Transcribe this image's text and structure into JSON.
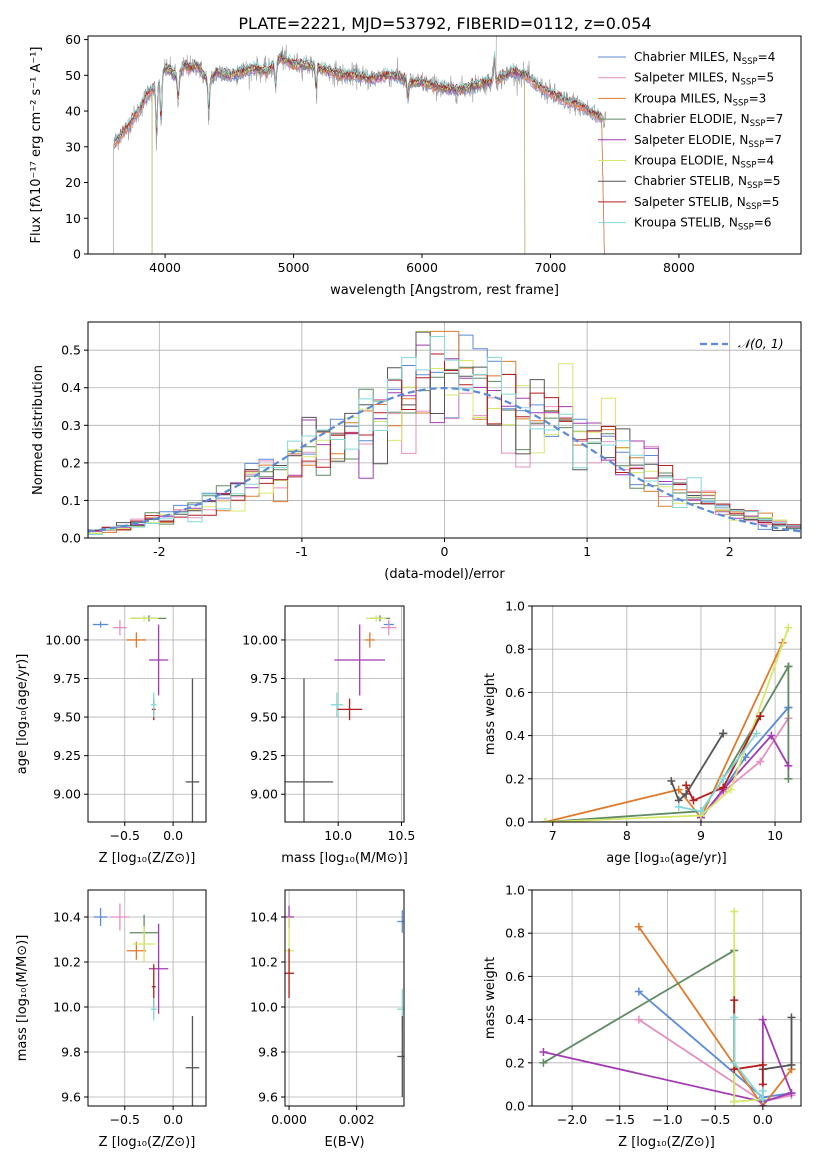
{
  "figure_title": "PLATE=2221, MJD=53792, FIBERID=0112, z=0.054",
  "colors": {
    "Chabrier MILES": "#5b8bd8",
    "Salpeter MILES": "#e58fc0",
    "Kroupa MILES": "#df7a2c",
    "Chabrier ELODIE": "#5f8a62",
    "Salpeter ELODIE": "#a23bb3",
    "Kroupa ELODIE": "#d6e86a",
    "Chabrier STELIB": "#555555",
    "Salpeter STELIB": "#b51d1d",
    "Kroupa STELIB": "#84d8d8",
    "normal_curve": "#5b8bd8",
    "grid": "#b0b0b0"
  },
  "chart_data": [
    {
      "id": "spectrum",
      "type": "line",
      "title": "PLATE=2221, MJD=53792, FIBERID=0112, z=0.054",
      "xlabel": "wavelength [Angstrom, rest frame]",
      "ylabel": "Flux [fλ10⁻¹⁷ erg cm⁻² s⁻¹ A⁻¹]",
      "xlim": [
        3400,
        8950
      ],
      "ylim": [
        0,
        61
      ],
      "xticks": [
        4000,
        5000,
        6000,
        7000,
        8000
      ],
      "yticks": [
        0,
        10,
        20,
        30,
        40,
        50,
        60
      ],
      "grid": false,
      "legend_position": "top-right",
      "legend": [
        {
          "series": "Chabrier MILES",
          "label": "Chabrier MILES, N",
          "sub": "SSP",
          "val": "=4"
        },
        {
          "series": "Salpeter MILES",
          "label": "Salpeter MILES, N",
          "sub": "SSP",
          "val": "=5"
        },
        {
          "series": "Kroupa MILES",
          "label": "Kroupa MILES, N",
          "sub": "SSP",
          "val": "=3"
        },
        {
          "series": "Chabrier ELODIE",
          "label": "Chabrier ELODIE, N",
          "sub": "SSP",
          "val": "=7"
        },
        {
          "series": "Salpeter ELODIE",
          "label": "Salpeter ELODIE, N",
          "sub": "SSP",
          "val": "=7"
        },
        {
          "series": "Kroupa ELODIE",
          "label": "Kroupa ELODIE, N",
          "sub": "SSP",
          "val": "=4"
        },
        {
          "series": "Chabrier STELIB",
          "label": "Chabrier STELIB, N",
          "sub": "SSP",
          "val": "=5"
        },
        {
          "series": "Salpeter STELIB",
          "label": "Salpeter STELIB, N",
          "sub": "SSP",
          "val": "=5"
        },
        {
          "series": "Kroupa STELIB",
          "label": "Kroupa STELIB, N",
          "sub": "SSP",
          "val": "=6"
        }
      ],
      "observed": {
        "x": [
          3600,
          3650,
          3700,
          3750,
          3800,
          3850,
          3900,
          3950,
          4000,
          4050,
          4100,
          4150,
          4200,
          4250,
          4300,
          4350,
          4400,
          4500,
          4600,
          4700,
          4800,
          4900,
          5000,
          5100,
          5200,
          5300,
          5400,
          5500,
          5600,
          5700,
          5800,
          5900,
          6000,
          6100,
          6200,
          6300,
          6400,
          6500,
          6600,
          6700,
          6800,
          6900,
          7000,
          7100,
          7200,
          7300,
          7400
        ],
        "y": [
          31,
          33,
          35,
          38,
          40,
          44,
          46,
          48,
          52,
          51,
          49,
          53,
          52,
          53,
          50,
          48,
          51,
          50,
          51,
          52,
          51,
          55,
          53,
          53,
          52,
          51,
          50,
          50,
          49,
          50,
          50,
          48,
          48,
          47,
          46,
          46,
          47,
          48,
          49,
          51,
          50,
          47,
          45,
          43,
          42,
          40,
          38
        ]
      },
      "model_cutoffs": {
        "Chabrier MILES": [
          3600,
          7400
        ],
        "Salpeter MILES": [
          3600,
          7400
        ],
        "Kroupa MILES": [
          3600,
          7400
        ],
        "Chabrier ELODIE": [
          3900,
          6800
        ],
        "Salpeter ELODIE": [
          3900,
          6800
        ],
        "Kroupa ELODIE": [
          3900,
          6800
        ],
        "Chabrier STELIB": [
          3600,
          7400
        ],
        "Salpeter STELIB": [
          3600,
          7400
        ],
        "Kroupa STELIB": [
          3600,
          7400
        ]
      }
    },
    {
      "id": "residuals",
      "type": "histogram",
      "xlabel": "(data-model)/error",
      "ylabel": "Normed distribution",
      "xlim": [
        -2.5,
        2.5
      ],
      "ylim": [
        0,
        0.575
      ],
      "xticks": [
        -2,
        -1,
        0,
        1,
        2
      ],
      "yticks": [
        0.0,
        0.1,
        0.2,
        0.3,
        0.4,
        0.5
      ],
      "grid": true,
      "legend_position": "top-right",
      "legend_label": "𝒩(0, 1)",
      "bin_width": 0.1,
      "bin_start": -2.5,
      "reference_curve": {
        "type": "normal",
        "mu": 0,
        "sigma": 1
      }
    },
    {
      "id": "age_vs_Z",
      "type": "scatter",
      "xlabel": "Z [log₁₀(Z/Z⊙)]",
      "ylabel": "age  [log₁₀(age/yr)]",
      "xlim": [
        -0.88,
        0.34
      ],
      "ylim": [
        8.82,
        10.22
      ],
      "xticks": [
        -0.5,
        0.0
      ],
      "xticklabels": [
        "−0.5",
        "0.0"
      ],
      "yticks": [
        9.0,
        9.25,
        9.5,
        9.75,
        10.0
      ],
      "yticklabels": [
        "9.00",
        "9.25",
        "9.50",
        "9.75",
        "10.00"
      ],
      "grid": true,
      "points": [
        {
          "series": "Chabrier MILES",
          "x": -0.75,
          "y": 10.1,
          "xerr": 0.08,
          "yerr": 0.02
        },
        {
          "series": "Salpeter MILES",
          "x": -0.55,
          "y": 10.08,
          "xerr": 0.07,
          "yerr": 0.05
        },
        {
          "series": "Kroupa MILES",
          "x": -0.38,
          "y": 10.0,
          "xerr": 0.1,
          "yerr": 0.05
        },
        {
          "series": "Chabrier ELODIE",
          "x": -0.25,
          "y": 10.14,
          "xerr": 0.18,
          "yerr": 0.02
        },
        {
          "series": "Salpeter ELODIE",
          "x": -0.15,
          "y": 9.87,
          "xerr": 0.1,
          "yerr": 0.23
        },
        {
          "series": "Kroupa ELODIE",
          "x": -0.3,
          "y": 10.14,
          "xerr": 0.15,
          "yerr": 0.02
        },
        {
          "series": "Chabrier STELIB",
          "x": 0.2,
          "y": 9.08,
          "xerr": 0.07,
          "yerr": 0.67
        },
        {
          "series": "Salpeter STELIB",
          "x": -0.2,
          "y": 9.55,
          "xerr": 0.02,
          "yerr": 0.07
        },
        {
          "series": "Kroupa STELIB",
          "x": -0.2,
          "y": 9.58,
          "xerr": 0.03,
          "yerr": 0.08
        }
      ]
    },
    {
      "id": "age_vs_mass",
      "type": "scatter",
      "xlabel": "mass [log₁₀(M/M⊙)]",
      "ylabel": "",
      "xlim": [
        9.58,
        10.52
      ],
      "ylim": [
        8.82,
        10.22
      ],
      "xticks": [
        10.0,
        10.5
      ],
      "xticklabels": [
        "10.0",
        "10.5"
      ],
      "yticks": [
        9.0,
        9.25,
        9.5,
        9.75,
        10.0
      ],
      "yticklabels": [
        "9.00",
        "9.25",
        "9.50",
        "9.75",
        "10.00"
      ],
      "grid": true,
      "points": [
        {
          "series": "Chabrier MILES",
          "x": 10.4,
          "y": 10.1,
          "xerr": 0.04,
          "yerr": 0.02
        },
        {
          "series": "Salpeter MILES",
          "x": 10.4,
          "y": 10.08,
          "xerr": 0.06,
          "yerr": 0.05
        },
        {
          "series": "Kroupa MILES",
          "x": 10.25,
          "y": 10.0,
          "xerr": 0.04,
          "yerr": 0.05
        },
        {
          "series": "Chabrier ELODIE",
          "x": 10.33,
          "y": 10.14,
          "xerr": 0.08,
          "yerr": 0.02
        },
        {
          "series": "Salpeter ELODIE",
          "x": 10.17,
          "y": 9.87,
          "xerr": 0.2,
          "yerr": 0.23
        },
        {
          "series": "Kroupa ELODIE",
          "x": 10.3,
          "y": 10.14,
          "xerr": 0.08,
          "yerr": 0.02
        },
        {
          "series": "Chabrier STELIB",
          "x": 9.73,
          "y": 9.08,
          "xerr": 0.23,
          "yerr": 0.67
        },
        {
          "series": "Salpeter STELIB",
          "x": 10.09,
          "y": 9.55,
          "xerr": 0.1,
          "yerr": 0.07
        },
        {
          "series": "Kroupa STELIB",
          "x": 9.99,
          "y": 9.58,
          "xerr": 0.05,
          "yerr": 0.08
        }
      ]
    },
    {
      "id": "weight_vs_age",
      "type": "line",
      "xlabel": "age  [log₁₀(age/yr)]",
      "ylabel": "mass weight",
      "xlim": [
        6.72,
        10.35
      ],
      "ylim": [
        0,
        1.0
      ],
      "xticks": [
        7,
        8,
        9,
        10
      ],
      "yticks": [
        0.0,
        0.2,
        0.4,
        0.6,
        0.8,
        1.0
      ],
      "yticklabels": [
        "0.0",
        "0.2",
        "0.4",
        "0.6",
        "0.8",
        "1.0"
      ],
      "grid": true,
      "series": [
        {
          "name": "Chabrier MILES",
          "x": [
            9.0,
            9.3,
            9.6,
            10.18,
            10.18
          ],
          "y": [
            0.02,
            0.15,
            0.3,
            0.53,
            0.53
          ]
        },
        {
          "name": "Salpeter MILES",
          "x": [
            9.0,
            9.3,
            9.8,
            10.18
          ],
          "y": [
            0.02,
            0.14,
            0.28,
            0.48
          ]
        },
        {
          "name": "Kroupa MILES",
          "x": [
            6.9,
            8.7,
            9.0,
            10.1
          ],
          "y": [
            0.0,
            0.15,
            0.02,
            0.83
          ]
        },
        {
          "name": "Chabrier ELODIE",
          "x": [
            6.9,
            9.0,
            9.3,
            10.18,
            10.18,
            10.18
          ],
          "y": [
            0.0,
            0.05,
            0.2,
            0.72,
            0.2,
            0.72
          ]
        },
        {
          "name": "Salpeter ELODIE",
          "x": [
            9.0,
            9.3,
            9.95,
            10.18
          ],
          "y": [
            0.02,
            0.15,
            0.4,
            0.26
          ]
        },
        {
          "name": "Kroupa ELODIE",
          "x": [
            6.9,
            9.0,
            9.4,
            10.18
          ],
          "y": [
            0.0,
            0.03,
            0.15,
            0.9
          ]
        },
        {
          "name": "Chabrier STELIB",
          "x": [
            8.6,
            8.7,
            8.8,
            9.3,
            9.3
          ],
          "y": [
            0.19,
            0.1,
            0.13,
            0.41,
            0.41
          ]
        },
        {
          "name": "Salpeter STELIB",
          "x": [
            8.8,
            8.9,
            9.3,
            9.8,
            9.8
          ],
          "y": [
            0.17,
            0.1,
            0.16,
            0.49,
            0.49
          ]
        },
        {
          "name": "Kroupa STELIB",
          "x": [
            8.7,
            9.0,
            9.3,
            9.75
          ],
          "y": [
            0.07,
            0.05,
            0.2,
            0.41
          ]
        }
      ]
    },
    {
      "id": "mass_vs_Z",
      "type": "scatter",
      "xlabel": "Z [log₁₀(Z/Z⊙)]",
      "ylabel": "mass [log₁₀(M/M⊙)]",
      "xlim": [
        -0.88,
        0.34
      ],
      "ylim": [
        9.56,
        10.52
      ],
      "xticks": [
        -0.5,
        0.0
      ],
      "xticklabels": [
        "−0.5",
        "0.0"
      ],
      "yticks": [
        9.6,
        9.8,
        10.0,
        10.2,
        10.4
      ],
      "yticklabels": [
        "9.6",
        "9.8",
        "10.0",
        "10.2",
        "10.4"
      ],
      "grid": true,
      "points": [
        {
          "series": "Chabrier MILES",
          "x": -0.75,
          "y": 10.4,
          "xerr": 0.07,
          "yerr": 0.04
        },
        {
          "series": "Salpeter MILES",
          "x": -0.55,
          "y": 10.4,
          "xerr": 0.1,
          "yerr": 0.06
        },
        {
          "series": "Kroupa MILES",
          "x": -0.38,
          "y": 10.25,
          "xerr": 0.1,
          "yerr": 0.04
        },
        {
          "series": "Chabrier ELODIE",
          "x": -0.3,
          "y": 10.33,
          "xerr": 0.15,
          "yerr": 0.08
        },
        {
          "series": "Salpeter ELODIE",
          "x": -0.15,
          "y": 10.17,
          "xerr": 0.1,
          "yerr": 0.2
        },
        {
          "series": "Kroupa ELODIE",
          "x": -0.3,
          "y": 10.28,
          "xerr": 0.12,
          "yerr": 0.08
        },
        {
          "series": "Chabrier STELIB",
          "x": 0.2,
          "y": 9.73,
          "xerr": 0.07,
          "yerr": 0.23
        },
        {
          "series": "Salpeter STELIB",
          "x": -0.2,
          "y": 10.09,
          "xerr": 0.02,
          "yerr": 0.1
        },
        {
          "series": "Kroupa STELIB",
          "x": -0.2,
          "y": 9.99,
          "xerr": 0.03,
          "yerr": 0.05
        }
      ]
    },
    {
      "id": "mass_vs_EBV",
      "type": "scatter",
      "xlabel": "E(B-V)",
      "ylabel": "",
      "xlim": [
        -0.00012,
        0.0034
      ],
      "ylim": [
        9.56,
        10.52
      ],
      "xticks": [
        0.0,
        0.002
      ],
      "xticklabels": [
        "0.000",
        "0.002"
      ],
      "yticks": [
        9.6,
        9.8,
        10.0,
        10.2,
        10.4
      ],
      "yticklabels": [
        "9.6",
        "9.8",
        "10.0",
        "10.2",
        "10.4"
      ],
      "grid": true,
      "points": [
        {
          "series": "Chabrier MILES",
          "x": 0.00335,
          "y": 10.38,
          "xerr": 0,
          "yerr": 0.05
        },
        {
          "series": "Salpeter ELODIE",
          "x": 0.0,
          "y": 10.4,
          "xerr": 0,
          "yerr": 0.05
        },
        {
          "series": "Kroupa ELODIE",
          "x": 0.0,
          "y": 10.25,
          "xerr": 0,
          "yerr": 0.15
        },
        {
          "series": "Salpeter STELIB",
          "x": 0.0,
          "y": 10.15,
          "xerr": 0,
          "yerr": 0.11
        },
        {
          "series": "Kroupa STELIB",
          "x": 0.00335,
          "y": 9.99,
          "xerr": 0,
          "yerr": 0.09
        },
        {
          "series": "Chabrier STELIB",
          "x": 0.00335,
          "y": 9.78,
          "xerr": 0,
          "yerr": 0.18
        }
      ]
    },
    {
      "id": "weight_vs_Z",
      "type": "line",
      "xlabel": "Z [log₁₀(Z/Z⊙)]",
      "ylabel": "mass weight",
      "xlim": [
        -2.42,
        0.4
      ],
      "ylim": [
        0,
        1.0
      ],
      "xticks": [
        -2.0,
        -1.5,
        -1.0,
        -0.5,
        0.0
      ],
      "xticklabels": [
        "−2.0",
        "−1.5",
        "−1.0",
        "−0.5",
        "0.0"
      ],
      "yticks": [
        0.0,
        0.2,
        0.4,
        0.6,
        0.8,
        1.0
      ],
      "yticklabels": [
        "0.0",
        "0.2",
        "0.4",
        "0.6",
        "0.8",
        "1.0"
      ],
      "grid": true,
      "series": [
        {
          "name": "Chabrier MILES",
          "x": [
            -1.3,
            0.0,
            0.3
          ],
          "y": [
            0.53,
            0.04,
            0.06
          ]
        },
        {
          "name": "Salpeter MILES",
          "x": [
            -1.3,
            0.0,
            0.3
          ],
          "y": [
            0.4,
            0.02,
            0.05
          ]
        },
        {
          "name": "Kroupa MILES",
          "x": [
            -1.3,
            0.0,
            0.3,
            0.3
          ],
          "y": [
            0.83,
            0.0,
            0.17,
            0.17
          ]
        },
        {
          "name": "Chabrier ELODIE",
          "x": [
            -2.3,
            -0.3,
            -0.3
          ],
          "y": [
            0.2,
            0.72,
            0.02
          ]
        },
        {
          "name": "Salpeter ELODIE",
          "x": [
            -2.3,
            0.0,
            0.3,
            0.0,
            0.0
          ],
          "y": [
            0.25,
            0.02,
            0.06,
            0.4,
            0.0
          ]
        },
        {
          "name": "Kroupa ELODIE",
          "x": [
            -0.3,
            -0.3,
            0.0
          ],
          "y": [
            0.9,
            0.02,
            0.03
          ]
        },
        {
          "name": "Chabrier STELIB",
          "x": [
            0.0,
            0.3,
            0.3
          ],
          "y": [
            0.17,
            0.19,
            0.41
          ]
        },
        {
          "name": "Salpeter STELIB",
          "x": [
            -0.3,
            -0.3,
            0.0,
            0.0
          ],
          "y": [
            0.49,
            0.17,
            0.19,
            0.1
          ]
        },
        {
          "name": "Kroupa STELIB",
          "x": [
            -0.3,
            -0.3,
            0.0,
            0.0
          ],
          "y": [
            0.41,
            0.2,
            0.03,
            0.07
          ]
        }
      ]
    }
  ]
}
